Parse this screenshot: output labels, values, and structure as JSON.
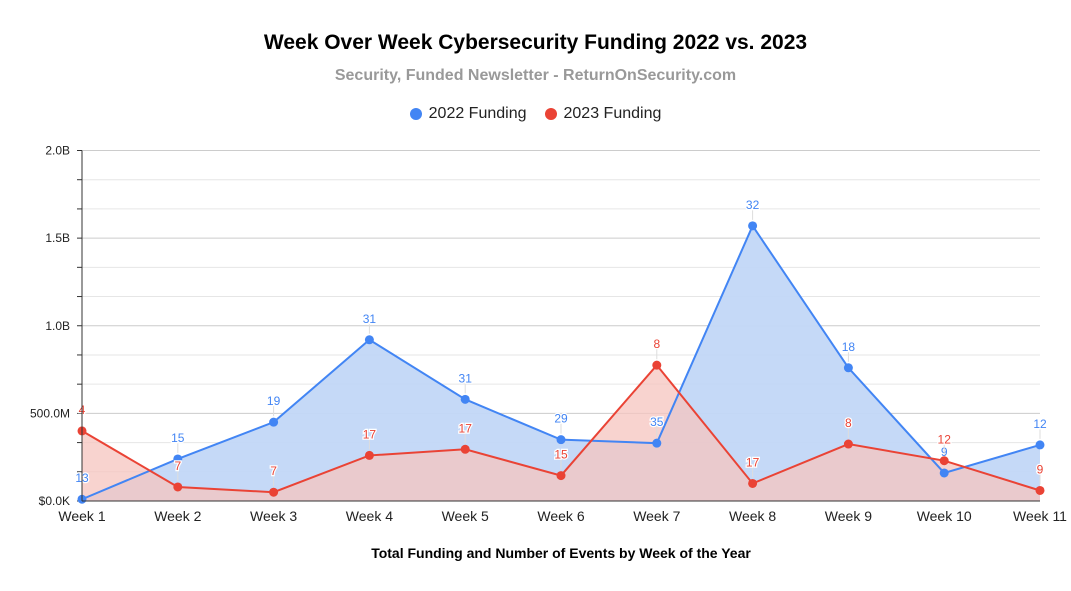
{
  "chart_data": {
    "type": "area",
    "title": "Week Over Week Cybersecurity Funding 2022 vs. 2023",
    "subtitle": "Security, Funded Newsletter - ReturnOnSecurity.com",
    "xlabel": "Total Funding and Number of Events by Week of the Year",
    "ylabel": "",
    "categories": [
      "Week 1",
      "Week 2",
      "Week 3",
      "Week 4",
      "Week 5",
      "Week 6",
      "Week 7",
      "Week 8",
      "Week 9",
      "Week 10",
      "Week 11"
    ],
    "ylim": [
      0,
      2000000000
    ],
    "yticks": [
      {
        "value": 0,
        "label": "$0.0K"
      },
      {
        "value": 500000000,
        "label": "500.0M"
      },
      {
        "value": 1000000000,
        "label": "1.0B"
      },
      {
        "value": 1500000000,
        "label": "1.5B"
      },
      {
        "value": 2000000000,
        "label": "2.0B"
      }
    ],
    "grid": true,
    "legend_position": "top",
    "series": [
      {
        "name": "2022 Funding",
        "color": "#4285f4",
        "fill": "#c2d7f7",
        "values": [
          10000000,
          240000000,
          450000000,
          920000000,
          580000000,
          350000000,
          330000000,
          1570000000,
          760000000,
          160000000,
          320000000
        ],
        "labels": [
          "13",
          "15",
          "19",
          "31",
          "31",
          "29",
          "35",
          "32",
          "18",
          "9",
          "12"
        ]
      },
      {
        "name": "2023 Funding",
        "color": "#ea4335",
        "fill": "#f5c4bf",
        "values": [
          400000000,
          80000000,
          50000000,
          260000000,
          295000000,
          145000000,
          775000000,
          100000000,
          325000000,
          230000000,
          60000000
        ],
        "labels": [
          "4",
          "7",
          "7",
          "17",
          "17",
          "15",
          "8",
          "17",
          "8",
          "12",
          "9"
        ]
      }
    ]
  }
}
